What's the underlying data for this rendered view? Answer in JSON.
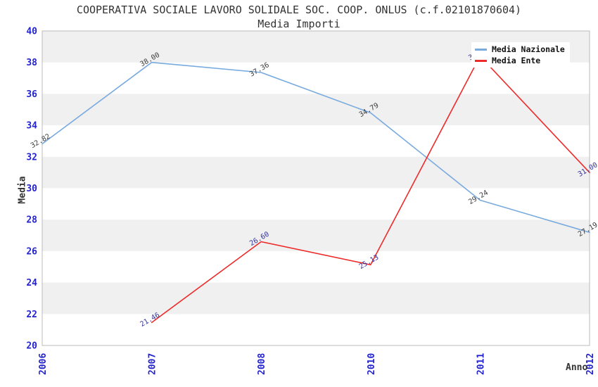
{
  "header": {
    "title": "COOPERATIVA SOCIALE LAVORO SOLIDALE SOC. COOP. ONLUS (c.f.02101870604)",
    "subtitle": "Media Importi"
  },
  "chart_data": {
    "type": "line",
    "title": "COOPERATIVA SOCIALE LAVORO SOLIDALE SOC. COOP. ONLUS (c.f.02101870604)",
    "subtitle": "Media Importi",
    "xlabel": "Anno",
    "ylabel": "Media",
    "categories": [
      "2006",
      "2007",
      "2008",
      "2010",
      "2011",
      "2012"
    ],
    "series": [
      {
        "name": "Media Nazionale",
        "color": "#78aade",
        "label_color": "#3c3c3c",
        "values": [
          32.82,
          38.0,
          37.36,
          34.79,
          29.24,
          27.19
        ]
      },
      {
        "name": "Media Ente",
        "color": "#ee2b2b",
        "label_color": "#333399",
        "values": [
          null,
          21.46,
          26.6,
          25.13,
          38.4,
          31.0
        ]
      }
    ],
    "ylim": [
      20,
      40
    ],
    "y_ticks": [
      40,
      38,
      36,
      34,
      32,
      30,
      28,
      26,
      24,
      22,
      20
    ],
    "grid": "alternating horizontal bands every 2 units",
    "legend_position": "top-right",
    "colors": {
      "band_fill": "#f0f0f0",
      "plot_border": "#bbbbbb",
      "tick_labels": "#2424cc",
      "axis_titles": "#333333",
      "title_text": "#333333"
    }
  }
}
